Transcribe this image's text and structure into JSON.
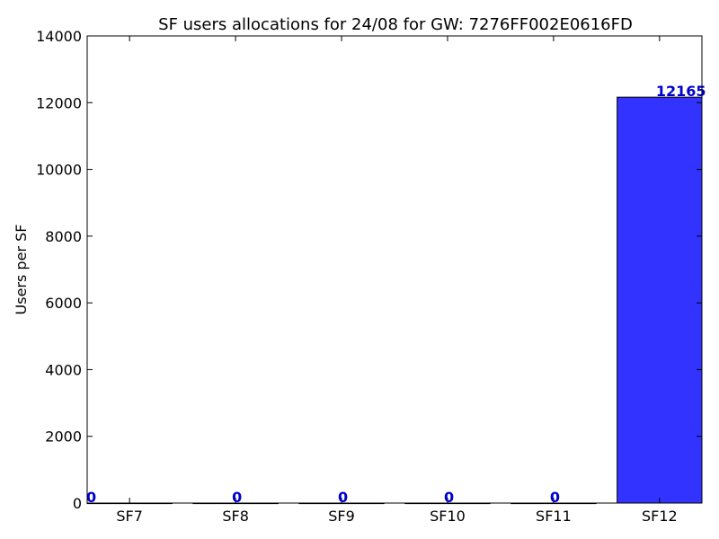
{
  "chart_data": {
    "type": "bar",
    "title": "SF users allocations for 24/08 for GW: 7276FF002E0616FD",
    "xlabel": "",
    "ylabel": "Users per SF",
    "categories": [
      "SF7",
      "SF8",
      "SF9",
      "SF10",
      "SF11",
      "SF12"
    ],
    "values": [
      0,
      0,
      0,
      0,
      0,
      12165
    ],
    "data_labels": [
      "0",
      "0",
      "0",
      "0",
      "0",
      "12165"
    ],
    "ylim": [
      0,
      14000
    ],
    "yticks": [
      0,
      2000,
      4000,
      6000,
      8000,
      10000,
      12000,
      14000
    ],
    "ytick_labels": [
      "0",
      "2000",
      "4000",
      "6000",
      "8000",
      "10000",
      "12000",
      "14000"
    ],
    "grid": false,
    "legend": false,
    "bar_color": "#3333ff",
    "label_color": "#0000cc"
  }
}
